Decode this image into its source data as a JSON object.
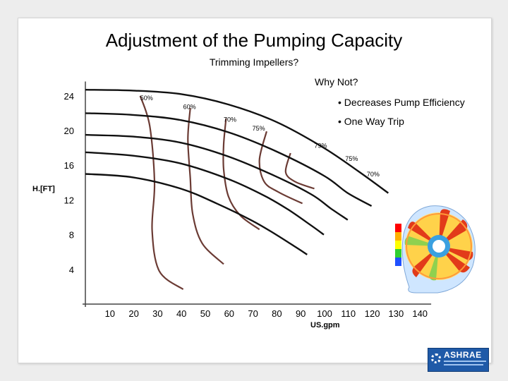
{
  "slide": {
    "title": "Adjustment of the Pumping Capacity",
    "subtitle": "Trimming Impellers?",
    "why_not": "Why Not?",
    "bullets": [
      "• Decreases Pump Efficiency",
      "• One Way Trip"
    ],
    "logo_text": "ASHRAE"
  },
  "chart_data": {
    "type": "line",
    "title": "",
    "xlabel": "US.gpm",
    "ylabel": "H.[FT]",
    "xlim": [
      0,
      145
    ],
    "ylim": [
      0,
      25
    ],
    "x_ticks": [
      10,
      20,
      30,
      40,
      50,
      60,
      70,
      80,
      90,
      100,
      110,
      120,
      130,
      140
    ],
    "y_ticks": [
      4,
      8,
      12,
      16,
      20,
      24
    ],
    "series": [
      {
        "values": [
          [
            0,
            24.7
          ],
          [
            20,
            24.6
          ],
          [
            40,
            24.2
          ],
          [
            60,
            23.0
          ],
          [
            80,
            21.0
          ],
          [
            100,
            18.0
          ],
          [
            115,
            15.2
          ],
          [
            127,
            12.8
          ]
        ]
      },
      {
        "values": [
          [
            0,
            22.0
          ],
          [
            20,
            21.8
          ],
          [
            40,
            21.2
          ],
          [
            60,
            19.8
          ],
          [
            80,
            17.6
          ],
          [
            100,
            14.8
          ],
          [
            110,
            12.8
          ],
          [
            120,
            11.3
          ]
        ]
      },
      {
        "values": [
          [
            0,
            19.5
          ],
          [
            20,
            19.3
          ],
          [
            40,
            18.6
          ],
          [
            60,
            17.0
          ],
          [
            80,
            14.7
          ],
          [
            95,
            12.6
          ],
          [
            103,
            11.0
          ],
          [
            110,
            9.7
          ]
        ]
      },
      {
        "values": [
          [
            0,
            17.5
          ],
          [
            20,
            17.1
          ],
          [
            40,
            16.2
          ],
          [
            60,
            14.4
          ],
          [
            75,
            12.5
          ],
          [
            85,
            10.9
          ],
          [
            95,
            9.0
          ],
          [
            100,
            8.0
          ]
        ]
      },
      {
        "values": [
          [
            0,
            15.0
          ],
          [
            20,
            14.6
          ],
          [
            40,
            13.3
          ],
          [
            55,
            11.6
          ],
          [
            70,
            9.6
          ],
          [
            80,
            8.0
          ],
          [
            88,
            6.6
          ],
          [
            93,
            5.7
          ]
        ]
      }
    ],
    "efficiency_labels": [
      "50%",
      "60%",
      "70%",
      "75%",
      "79%",
      "75%",
      "70%"
    ],
    "efficiency_contours": [
      {
        "label": "50%",
        "points": [
          [
            23,
            24.0
          ],
          [
            27,
            20.5
          ],
          [
            29,
            14.0
          ],
          [
            28,
            8.5
          ],
          [
            31,
            3.8
          ],
          [
            41,
            1.7
          ]
        ]
      },
      {
        "label": "60%",
        "points": [
          [
            44,
            22.6
          ],
          [
            43,
            19.0
          ],
          [
            44,
            14.5
          ],
          [
            45,
            10.4
          ],
          [
            49,
            7.0
          ],
          [
            58,
            4.6
          ]
        ]
      },
      {
        "label": "70%",
        "points": [
          [
            59,
            21.4
          ],
          [
            58,
            18.4
          ],
          [
            58,
            15.5
          ],
          [
            60,
            12.4
          ],
          [
            65,
            10.2
          ],
          [
            73,
            8.6
          ]
        ]
      },
      {
        "label": "75%",
        "points": [
          [
            76,
            19.9
          ],
          [
            73,
            16.6
          ],
          [
            75,
            14.1
          ],
          [
            81,
            12.9
          ],
          [
            91,
            11.6
          ]
        ]
      },
      {
        "label": "79%",
        "points": [
          [
            86,
            17.4
          ],
          [
            84,
            15.2
          ],
          [
            88,
            14.1
          ],
          [
            96,
            13.3
          ]
        ]
      }
    ]
  }
}
